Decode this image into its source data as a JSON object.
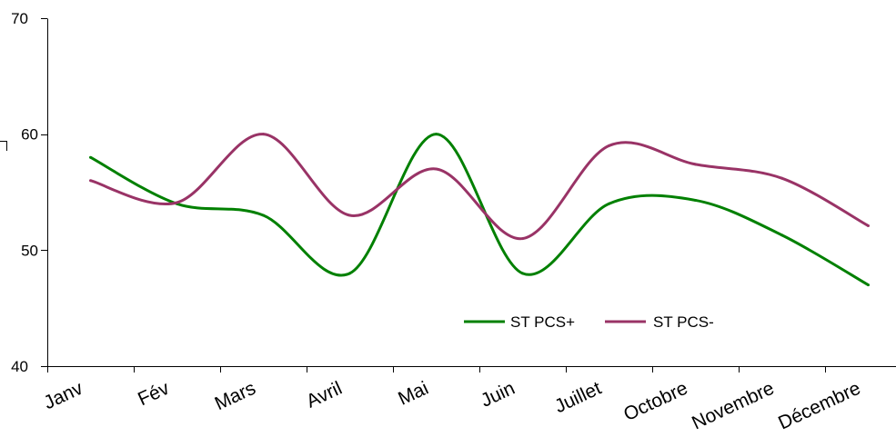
{
  "chart_data": {
    "type": "line",
    "smooth": true,
    "categories": [
      "Janv",
      "Fév",
      "Mars",
      "Avril",
      "Mai",
      "Juin",
      "Juillet",
      "Octobre",
      "Novembre",
      "Décembre"
    ],
    "series": [
      {
        "name": "ST PCS+",
        "color": "#008000",
        "values": [
          58,
          54,
          53,
          48,
          60,
          48,
          54,
          54.3,
          51.3,
          47
        ]
      },
      {
        "name": "ST PCS-",
        "color": "#993366",
        "values": [
          56,
          54.1,
          60,
          53,
          57,
          51,
          59,
          57.4,
          56.2,
          52.1
        ]
      }
    ],
    "yticks": [
      40,
      50,
      60,
      70
    ],
    "ylim": [
      40,
      70
    ],
    "grid": false,
    "legend": "bottom-right"
  }
}
